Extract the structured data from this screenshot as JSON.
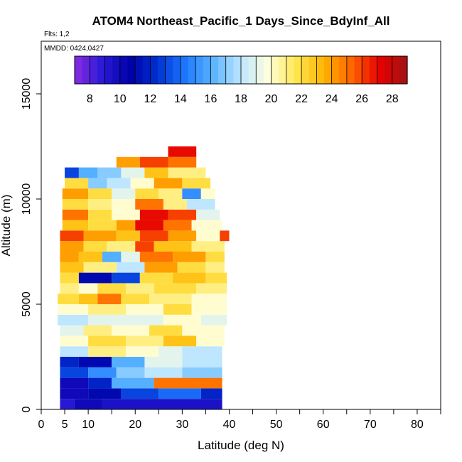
{
  "chart_data": {
    "type": "heatmap",
    "title": "ATOM4 Northeast_Pacific_1 Days_Since_BdyInf_All",
    "flights_label": "Flts: 1,2",
    "dates_label": "MMDD: 0424,0427",
    "xlabel": "Latitude (deg N)",
    "ylabel": "Altitude (m)",
    "xlim": [
      0,
      85
    ],
    "ylim": [
      0,
      17500
    ],
    "x_ticks": [
      0,
      5,
      10,
      20,
      30,
      40,
      50,
      60,
      70,
      80
    ],
    "x_minor_ticks": [
      15,
      25,
      35,
      45,
      55,
      65,
      75,
      85
    ],
    "y_ticks": [
      0,
      5000,
      10000,
      15000
    ],
    "grid": false,
    "colorbar": {
      "range": [
        7,
        29
      ],
      "ticks": [
        8,
        10,
        12,
        14,
        16,
        18,
        20,
        22,
        24,
        26,
        28
      ],
      "position": "top",
      "colors": [
        "#8a2be2",
        "#2a1ad8",
        "#0000a8",
        "#0032d2",
        "#1e78ff",
        "#5ab4ff",
        "#bfe6ff",
        "#ffffdc",
        "#ffe650",
        "#ffb400",
        "#ff6400",
        "#e60000",
        "#a01414"
      ]
    },
    "layers": [
      {
        "alt": [
          0,
          500
        ],
        "lat": [
          4,
          38.5
        ],
        "segments": [
          [
            4,
            7,
            9
          ],
          [
            7,
            13,
            10
          ],
          [
            13,
            38.5,
            9.5
          ]
        ]
      },
      {
        "alt": [
          500,
          1000
        ],
        "lat": [
          4,
          38.5
        ],
        "segments": [
          [
            4,
            10,
            10
          ],
          [
            10,
            17,
            11
          ],
          [
            17,
            25,
            13
          ],
          [
            25,
            34,
            14
          ],
          [
            34,
            38.5,
            12
          ]
        ]
      },
      {
        "alt": [
          1000,
          1500
        ],
        "lat": [
          4,
          38.5
        ],
        "segments": [
          [
            4,
            10,
            10
          ],
          [
            10,
            15,
            12
          ],
          [
            15,
            24,
            16
          ],
          [
            24,
            38.5,
            25
          ]
        ]
      },
      {
        "alt": [
          1500,
          2000
        ],
        "lat": [
          4,
          38.5
        ],
        "segments": [
          [
            4,
            10,
            13
          ],
          [
            10,
            16,
            15
          ],
          [
            16,
            22,
            17
          ],
          [
            22,
            30,
            18
          ],
          [
            30,
            38.5,
            17
          ]
        ]
      },
      {
        "alt": [
          2000,
          2500
        ],
        "lat": [
          4,
          38.5
        ],
        "segments": [
          [
            4,
            8,
            12
          ],
          [
            8,
            15,
            11
          ],
          [
            15,
            22,
            16
          ],
          [
            22,
            30,
            19
          ],
          [
            30,
            38.5,
            18
          ]
        ]
      },
      {
        "alt": [
          2500,
          3000
        ],
        "lat": [
          4,
          38.5
        ],
        "segments": [
          [
            4,
            10,
            18
          ],
          [
            10,
            18,
            21
          ],
          [
            18,
            25,
            20
          ],
          [
            25,
            30,
            19
          ],
          [
            30,
            38.5,
            18
          ]
        ]
      },
      {
        "alt": [
          3000,
          3500
        ],
        "lat": [
          4,
          39
        ],
        "segments": [
          [
            4,
            10,
            20
          ],
          [
            10,
            18,
            22
          ],
          [
            18,
            26,
            21
          ],
          [
            26,
            33,
            23
          ],
          [
            33,
            39,
            20
          ]
        ]
      },
      {
        "alt": [
          3500,
          4000
        ],
        "lat": [
          4,
          39
        ],
        "segments": [
          [
            4,
            9,
            19
          ],
          [
            9,
            15,
            21
          ],
          [
            15,
            23,
            20
          ],
          [
            23,
            30,
            22
          ],
          [
            30,
            39,
            20
          ]
        ]
      },
      {
        "alt": [
          4000,
          4500
        ],
        "lat": [
          3.5,
          39.5
        ],
        "segments": [
          [
            3.5,
            10,
            18
          ],
          [
            10,
            18,
            19
          ],
          [
            18,
            26,
            19
          ],
          [
            26,
            34,
            20
          ],
          [
            34,
            39.5,
            19
          ]
        ]
      },
      {
        "alt": [
          4500,
          5000
        ],
        "lat": [
          3.5,
          39.5
        ],
        "segments": [
          [
            3.5,
            10,
            20
          ],
          [
            10,
            18,
            21
          ],
          [
            18,
            26,
            20
          ],
          [
            26,
            32,
            22
          ],
          [
            32,
            39.5,
            20
          ]
        ]
      },
      {
        "alt": [
          5000,
          5500
        ],
        "lat": [
          3.5,
          39.5
        ],
        "segments": [
          [
            3.5,
            8,
            22
          ],
          [
            8,
            12,
            23
          ],
          [
            12,
            17,
            25
          ],
          [
            17,
            23,
            22
          ],
          [
            23,
            32,
            21
          ],
          [
            32,
            39.5,
            20
          ]
        ]
      },
      {
        "alt": [
          5500,
          6000
        ],
        "lat": [
          4,
          39.5
        ],
        "segments": [
          [
            4,
            8,
            21
          ],
          [
            8,
            12,
            20
          ],
          [
            12,
            18,
            22
          ],
          [
            18,
            24,
            21
          ],
          [
            24,
            33,
            22
          ],
          [
            33,
            39.5,
            21
          ]
        ]
      },
      {
        "alt": [
          6000,
          6500
        ],
        "lat": [
          4,
          39.5
        ],
        "segments": [
          [
            4,
            8,
            22
          ],
          [
            8,
            15,
            11
          ],
          [
            15,
            21,
            13
          ],
          [
            21,
            28,
            22
          ],
          [
            28,
            35,
            23
          ],
          [
            35,
            39.5,
            22
          ]
        ]
      },
      {
        "alt": [
          6500,
          7000
        ],
        "lat": [
          4,
          39
        ],
        "segments": [
          [
            4,
            9,
            23
          ],
          [
            9,
            16,
            21
          ],
          [
            16,
            22,
            18
          ],
          [
            22,
            29,
            24
          ],
          [
            29,
            35,
            22
          ],
          [
            35,
            39,
            21
          ]
        ]
      },
      {
        "alt": [
          7000,
          7500
        ],
        "lat": [
          4,
          39
        ],
        "segments": [
          [
            4,
            8,
            24
          ],
          [
            8,
            13,
            23
          ],
          [
            13,
            17,
            16
          ],
          [
            17,
            21,
            19
          ],
          [
            21,
            28,
            25
          ],
          [
            28,
            35,
            24
          ],
          [
            35,
            39,
            22
          ]
        ]
      },
      {
        "alt": [
          7500,
          8000
        ],
        "lat": [
          4,
          39
        ],
        "segments": [
          [
            4,
            9,
            24
          ],
          [
            9,
            14,
            22
          ],
          [
            14,
            20,
            21
          ],
          [
            20,
            24,
            26
          ],
          [
            24,
            32,
            23
          ],
          [
            32,
            39,
            21
          ]
        ]
      },
      {
        "alt": [
          8000,
          8500
        ],
        "lat": [
          4,
          40
        ],
        "segments": [
          [
            4,
            9,
            26
          ],
          [
            9,
            16,
            24
          ],
          [
            16,
            21,
            23
          ],
          [
            21,
            27,
            26
          ],
          [
            27,
            33,
            24
          ],
          [
            33,
            38,
            20
          ],
          [
            38,
            40,
            26
          ]
        ]
      },
      {
        "alt": [
          8500,
          9000
        ],
        "lat": [
          4.5,
          38.5
        ],
        "segments": [
          [
            4.5,
            10,
            23
          ],
          [
            10,
            16,
            22
          ],
          [
            16,
            20,
            24
          ],
          [
            20,
            26,
            27
          ],
          [
            26,
            32,
            25
          ],
          [
            32,
            38.5,
            20
          ]
        ]
      },
      {
        "alt": [
          9000,
          9500
        ],
        "lat": [
          4.5,
          38
        ],
        "segments": [
          [
            4.5,
            10,
            25
          ],
          [
            10,
            15,
            22
          ],
          [
            15,
            21,
            20
          ],
          [
            21,
            27,
            27
          ],
          [
            27,
            33,
            26
          ],
          [
            33,
            38,
            19
          ]
        ]
      },
      {
        "alt": [
          9500,
          10000
        ],
        "lat": [
          4.5,
          37
        ],
        "segments": [
          [
            4.5,
            10,
            22
          ],
          [
            10,
            15,
            21
          ],
          [
            15,
            20,
            20
          ],
          [
            20,
            26,
            25
          ],
          [
            26,
            31,
            21
          ],
          [
            31,
            37,
            18
          ]
        ]
      },
      {
        "alt": [
          10000,
          10500
        ],
        "lat": [
          4.5,
          37
        ],
        "segments": [
          [
            4.5,
            10,
            24
          ],
          [
            10,
            15,
            22
          ],
          [
            15,
            20,
            19
          ],
          [
            20,
            25,
            22
          ],
          [
            25,
            30,
            21
          ],
          [
            30,
            34,
            15
          ],
          [
            34,
            37,
            20
          ]
        ]
      },
      {
        "alt": [
          10500,
          11000
        ],
        "lat": [
          5,
          36
        ],
        "segments": [
          [
            5,
            10,
            22
          ],
          [
            10,
            14,
            17
          ],
          [
            14,
            19,
            18
          ],
          [
            19,
            24,
            20
          ],
          [
            24,
            30,
            24
          ],
          [
            30,
            36,
            22
          ]
        ]
      },
      {
        "alt": [
          11000,
          11500
        ],
        "lat": [
          5,
          35
        ],
        "segments": [
          [
            5,
            8,
            13
          ],
          [
            8,
            12,
            16
          ],
          [
            12,
            17,
            17
          ],
          [
            17,
            22,
            19
          ],
          [
            22,
            27,
            23
          ],
          [
            27,
            35,
            21
          ]
        ]
      },
      {
        "alt": [
          11500,
          12000
        ],
        "lat": [
          16,
          33
        ],
        "segments": [
          [
            16,
            21,
            24
          ],
          [
            21,
            27,
            26
          ],
          [
            27,
            33,
            25
          ]
        ]
      },
      {
        "alt": [
          12000,
          12500
        ],
        "lat": [
          27,
          33
        ],
        "segments": [
          [
            27,
            33,
            27
          ]
        ]
      }
    ]
  }
}
